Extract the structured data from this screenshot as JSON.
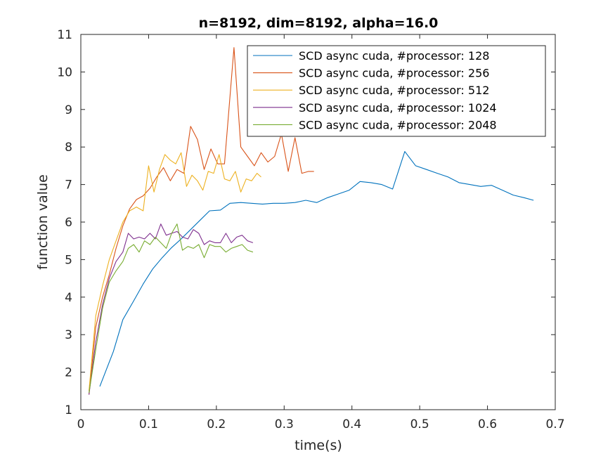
{
  "chart_data": {
    "type": "line",
    "title": "n=8192, dim=8192, alpha=16.0",
    "xlabel": "time(s)",
    "ylabel": "function value",
    "xlim": [
      0,
      0.7
    ],
    "ylim": [
      1,
      11
    ],
    "xticks": [
      "0",
      "0.1",
      "0.2",
      "0.3",
      "0.4",
      "0.5",
      "0.6",
      "0.7"
    ],
    "yticks": [
      "1",
      "2",
      "3",
      "4",
      "5",
      "6",
      "7",
      "8",
      "9",
      "10",
      "11"
    ],
    "grid": false,
    "legend_position": "top-right",
    "series": [
      {
        "name": "SCD  async  cuda, #processor: 128",
        "color": "#0072BD",
        "x": [
          0.028,
          0.048,
          0.062,
          0.078,
          0.092,
          0.106,
          0.12,
          0.134,
          0.148,
          0.162,
          0.176,
          0.19,
          0.206,
          0.22,
          0.236,
          0.252,
          0.268,
          0.284,
          0.3,
          0.316,
          0.332,
          0.348,
          0.364,
          0.38,
          0.396,
          0.412,
          0.428,
          0.444,
          0.46,
          0.478,
          0.494,
          0.51,
          0.526,
          0.542,
          0.558,
          0.574,
          0.59,
          0.606,
          0.622,
          0.638,
          0.654,
          0.668
        ],
        "y": [
          1.62,
          2.55,
          3.4,
          3.9,
          4.35,
          4.75,
          5.05,
          5.32,
          5.55,
          5.8,
          6.05,
          6.3,
          6.32,
          6.5,
          6.52,
          6.5,
          6.48,
          6.5,
          6.5,
          6.52,
          6.58,
          6.52,
          6.65,
          6.75,
          6.85,
          7.08,
          7.05,
          7.0,
          6.88,
          7.88,
          7.5,
          7.4,
          7.3,
          7.2,
          7.05,
          7.0,
          6.95,
          6.98,
          6.85,
          6.72,
          6.65,
          6.58
        ]
      },
      {
        "name": "SCD  async  cuda, #processor: 256",
        "color": "#D95319",
        "x": [
          0.012,
          0.022,
          0.032,
          0.042,
          0.052,
          0.062,
          0.072,
          0.082,
          0.092,
          0.102,
          0.112,
          0.122,
          0.132,
          0.142,
          0.152,
          0.162,
          0.172,
          0.182,
          0.192,
          0.202,
          0.212,
          0.226,
          0.236,
          0.246,
          0.256,
          0.266,
          0.276,
          0.286,
          0.296,
          0.306,
          0.316,
          0.326,
          0.336,
          0.344
        ],
        "y": [
          1.4,
          3.2,
          4.0,
          4.6,
          5.3,
          5.9,
          6.35,
          6.6,
          6.7,
          6.9,
          7.2,
          7.45,
          7.1,
          7.4,
          7.3,
          8.55,
          8.2,
          7.4,
          7.95,
          7.55,
          7.55,
          10.65,
          8.0,
          7.75,
          7.5,
          7.85,
          7.6,
          7.75,
          8.35,
          7.35,
          8.25,
          7.3,
          7.35,
          7.35
        ]
      },
      {
        "name": "SCD  async  cuda, #processor: 512",
        "color": "#EDB120",
        "x": [
          0.012,
          0.022,
          0.032,
          0.042,
          0.052,
          0.062,
          0.072,
          0.082,
          0.092,
          0.1,
          0.108,
          0.116,
          0.124,
          0.132,
          0.14,
          0.148,
          0.156,
          0.164,
          0.172,
          0.18,
          0.188,
          0.196,
          0.204,
          0.212,
          0.22,
          0.228,
          0.236,
          0.244,
          0.252,
          0.26,
          0.266
        ],
        "y": [
          1.5,
          3.5,
          4.3,
          5.0,
          5.5,
          6.0,
          6.3,
          6.4,
          6.3,
          7.5,
          6.8,
          7.4,
          7.8,
          7.65,
          7.55,
          7.85,
          6.95,
          7.25,
          7.1,
          6.85,
          7.35,
          7.3,
          7.8,
          7.15,
          7.1,
          7.35,
          6.8,
          7.15,
          7.1,
          7.3,
          7.2
        ]
      },
      {
        "name": "SCD  async  cuda, #processor: 1024",
        "color": "#7E2F8E",
        "x": [
          0.012,
          0.022,
          0.032,
          0.042,
          0.052,
          0.062,
          0.07,
          0.078,
          0.086,
          0.094,
          0.102,
          0.11,
          0.118,
          0.126,
          0.134,
          0.142,
          0.15,
          0.158,
          0.166,
          0.174,
          0.182,
          0.19,
          0.198,
          0.206,
          0.214,
          0.222,
          0.23,
          0.238,
          0.246,
          0.254
        ],
        "y": [
          1.4,
          2.8,
          3.8,
          4.5,
          4.95,
          5.2,
          5.7,
          5.55,
          5.6,
          5.55,
          5.7,
          5.55,
          5.95,
          5.65,
          5.7,
          5.75,
          5.6,
          5.55,
          5.8,
          5.7,
          5.4,
          5.5,
          5.45,
          5.45,
          5.7,
          5.45,
          5.6,
          5.65,
          5.5,
          5.45
        ]
      },
      {
        "name": "SCD  async  cuda, #processor: 2048",
        "color": "#77AC30",
        "x": [
          0.012,
          0.022,
          0.032,
          0.042,
          0.052,
          0.062,
          0.07,
          0.078,
          0.086,
          0.094,
          0.102,
          0.11,
          0.118,
          0.126,
          0.134,
          0.142,
          0.15,
          0.158,
          0.166,
          0.174,
          0.182,
          0.19,
          0.198,
          0.206,
          0.214,
          0.222,
          0.23,
          0.238,
          0.246,
          0.254
        ],
        "y": [
          1.45,
          2.6,
          3.7,
          4.4,
          4.7,
          4.95,
          5.3,
          5.4,
          5.2,
          5.5,
          5.4,
          5.6,
          5.45,
          5.3,
          5.7,
          5.95,
          5.25,
          5.35,
          5.3,
          5.4,
          5.05,
          5.4,
          5.35,
          5.35,
          5.2,
          5.3,
          5.35,
          5.4,
          5.25,
          5.2
        ]
      }
    ]
  }
}
